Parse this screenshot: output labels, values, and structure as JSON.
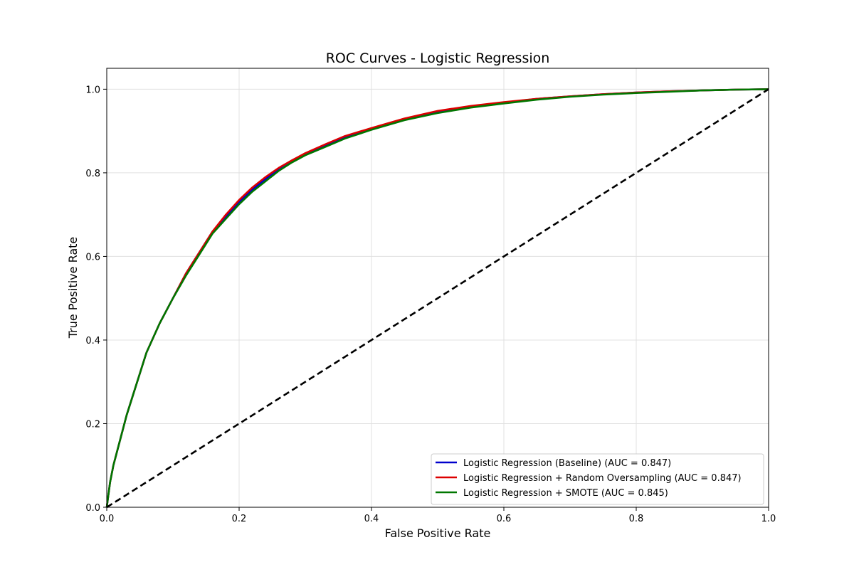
{
  "chart_data": {
    "type": "line",
    "title": "ROC Curves - Logistic Regression",
    "xlabel": "False Positive Rate",
    "ylabel": "True Positive Rate",
    "xlim": [
      0.0,
      1.0
    ],
    "ylim": [
      0.0,
      1.05
    ],
    "xticks": [
      0.0,
      0.2,
      0.4,
      0.6,
      0.8,
      1.0
    ],
    "yticks": [
      0.0,
      0.2,
      0.4,
      0.6,
      0.8,
      1.0
    ],
    "xtick_labels": [
      "0.0",
      "0.2",
      "0.4",
      "0.6",
      "0.8",
      "1.0"
    ],
    "ytick_labels": [
      "0.0",
      "0.2",
      "0.4",
      "0.6",
      "0.8",
      "1.0"
    ],
    "grid": true,
    "legend_position": "lower-right",
    "series": [
      {
        "name": "Logistic Regression (Baseline) (AUC = 0.847)",
        "color": "#0000cc",
        "x": [
          0.0,
          0.005,
          0.01,
          0.02,
          0.03,
          0.04,
          0.05,
          0.06,
          0.08,
          0.1,
          0.12,
          0.14,
          0.16,
          0.18,
          0.2,
          0.22,
          0.24,
          0.26,
          0.28,
          0.3,
          0.33,
          0.36,
          0.4,
          0.45,
          0.5,
          0.55,
          0.6,
          0.65,
          0.7,
          0.75,
          0.8,
          0.85,
          0.9,
          0.95,
          1.0
        ],
        "y": [
          0.0,
          0.06,
          0.1,
          0.16,
          0.22,
          0.27,
          0.32,
          0.37,
          0.44,
          0.5,
          0.56,
          0.61,
          0.66,
          0.695,
          0.73,
          0.76,
          0.785,
          0.81,
          0.83,
          0.845,
          0.865,
          0.885,
          0.905,
          0.928,
          0.945,
          0.958,
          0.968,
          0.977,
          0.983,
          0.988,
          0.992,
          0.995,
          0.997,
          0.999,
          1.0
        ]
      },
      {
        "name": "Logistic Regression + Random Oversampling (AUC = 0.847)",
        "color": "#dd0000",
        "x": [
          0.0,
          0.005,
          0.01,
          0.02,
          0.03,
          0.04,
          0.05,
          0.06,
          0.08,
          0.1,
          0.12,
          0.14,
          0.16,
          0.18,
          0.2,
          0.22,
          0.24,
          0.26,
          0.28,
          0.3,
          0.33,
          0.36,
          0.4,
          0.45,
          0.5,
          0.55,
          0.6,
          0.65,
          0.7,
          0.75,
          0.8,
          0.85,
          0.9,
          0.95,
          1.0
        ],
        "y": [
          0.0,
          0.06,
          0.1,
          0.16,
          0.22,
          0.27,
          0.32,
          0.37,
          0.44,
          0.5,
          0.56,
          0.61,
          0.66,
          0.7,
          0.735,
          0.765,
          0.79,
          0.812,
          0.83,
          0.847,
          0.868,
          0.888,
          0.907,
          0.93,
          0.948,
          0.96,
          0.969,
          0.977,
          0.983,
          0.988,
          0.992,
          0.995,
          0.997,
          0.999,
          1.0
        ]
      },
      {
        "name": "Logistic Regression + SMOTE (AUC = 0.845)",
        "color": "#007700",
        "x": [
          0.0,
          0.005,
          0.01,
          0.02,
          0.03,
          0.04,
          0.05,
          0.06,
          0.08,
          0.1,
          0.12,
          0.14,
          0.16,
          0.18,
          0.2,
          0.22,
          0.24,
          0.26,
          0.28,
          0.3,
          0.33,
          0.36,
          0.4,
          0.45,
          0.5,
          0.55,
          0.6,
          0.65,
          0.7,
          0.75,
          0.8,
          0.85,
          0.9,
          0.95,
          1.0
        ],
        "y": [
          0.0,
          0.06,
          0.1,
          0.16,
          0.22,
          0.27,
          0.32,
          0.37,
          0.44,
          0.5,
          0.555,
          0.605,
          0.655,
          0.69,
          0.725,
          0.755,
          0.78,
          0.805,
          0.825,
          0.842,
          0.862,
          0.882,
          0.903,
          0.926,
          0.943,
          0.956,
          0.966,
          0.975,
          0.982,
          0.987,
          0.991,
          0.994,
          0.997,
          0.999,
          1.0
        ]
      }
    ],
    "reference_line": {
      "color": "#000000",
      "style": "dashed",
      "x": [
        0.0,
        1.0
      ],
      "y": [
        0.0,
        1.0
      ]
    }
  }
}
